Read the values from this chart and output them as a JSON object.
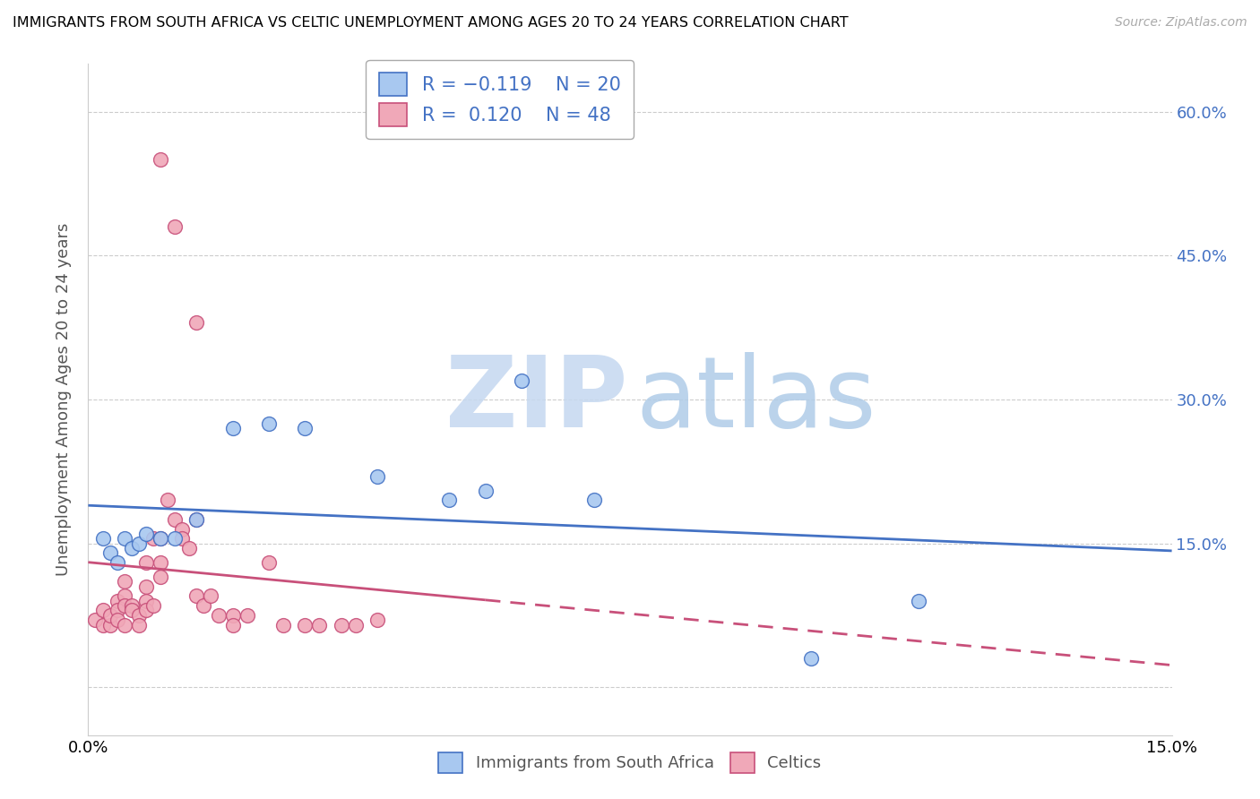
{
  "title": "IMMIGRANTS FROM SOUTH AFRICA VS CELTIC UNEMPLOYMENT AMONG AGES 20 TO 24 YEARS CORRELATION CHART",
  "source": "Source: ZipAtlas.com",
  "ylabel": "Unemployment Among Ages 20 to 24 years",
  "xlim": [
    0.0,
    0.15
  ],
  "ylim": [
    -0.05,
    0.65
  ],
  "color_blue": "#a8c8f0",
  "color_pink": "#f0a8b8",
  "line_blue": "#4472c4",
  "line_pink": "#c8507a",
  "blue_scatter": [
    [
      0.002,
      0.155
    ],
    [
      0.003,
      0.14
    ],
    [
      0.004,
      0.13
    ],
    [
      0.005,
      0.155
    ],
    [
      0.006,
      0.145
    ],
    [
      0.007,
      0.15
    ],
    [
      0.008,
      0.16
    ],
    [
      0.01,
      0.155
    ],
    [
      0.012,
      0.155
    ],
    [
      0.015,
      0.175
    ],
    [
      0.02,
      0.27
    ],
    [
      0.025,
      0.275
    ],
    [
      0.03,
      0.27
    ],
    [
      0.04,
      0.22
    ],
    [
      0.05,
      0.195
    ],
    [
      0.055,
      0.205
    ],
    [
      0.06,
      0.32
    ],
    [
      0.07,
      0.195
    ],
    [
      0.1,
      0.03
    ],
    [
      0.115,
      0.09
    ]
  ],
  "pink_scatter": [
    [
      0.001,
      0.07
    ],
    [
      0.002,
      0.08
    ],
    [
      0.002,
      0.065
    ],
    [
      0.003,
      0.065
    ],
    [
      0.003,
      0.075
    ],
    [
      0.004,
      0.09
    ],
    [
      0.004,
      0.08
    ],
    [
      0.004,
      0.07
    ],
    [
      0.005,
      0.11
    ],
    [
      0.005,
      0.095
    ],
    [
      0.005,
      0.085
    ],
    [
      0.005,
      0.065
    ],
    [
      0.006,
      0.085
    ],
    [
      0.006,
      0.08
    ],
    [
      0.007,
      0.075
    ],
    [
      0.007,
      0.065
    ],
    [
      0.008,
      0.13
    ],
    [
      0.008,
      0.105
    ],
    [
      0.008,
      0.09
    ],
    [
      0.008,
      0.08
    ],
    [
      0.009,
      0.155
    ],
    [
      0.009,
      0.085
    ],
    [
      0.01,
      0.155
    ],
    [
      0.01,
      0.13
    ],
    [
      0.01,
      0.115
    ],
    [
      0.011,
      0.195
    ],
    [
      0.012,
      0.175
    ],
    [
      0.013,
      0.165
    ],
    [
      0.013,
      0.155
    ],
    [
      0.014,
      0.145
    ],
    [
      0.015,
      0.175
    ],
    [
      0.015,
      0.095
    ],
    [
      0.016,
      0.085
    ],
    [
      0.017,
      0.095
    ],
    [
      0.018,
      0.075
    ],
    [
      0.02,
      0.075
    ],
    [
      0.022,
      0.075
    ],
    [
      0.025,
      0.13
    ],
    [
      0.027,
      0.065
    ],
    [
      0.03,
      0.065
    ],
    [
      0.032,
      0.065
    ],
    [
      0.035,
      0.065
    ],
    [
      0.037,
      0.065
    ],
    [
      0.04,
      0.07
    ],
    [
      0.01,
      0.55
    ],
    [
      0.012,
      0.48
    ],
    [
      0.015,
      0.38
    ],
    [
      0.02,
      0.065
    ]
  ],
  "blue_trend": [
    -1.0,
    0.185
  ],
  "pink_trend": [
    2.5,
    0.12
  ],
  "pink_trend_dash_start": 0.055
}
